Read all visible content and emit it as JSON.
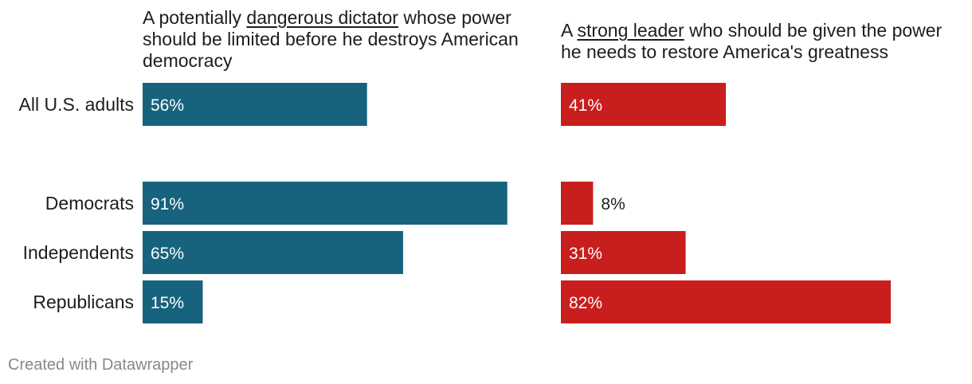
{
  "chart_data": {
    "type": "bar",
    "orientation": "horizontal",
    "categories": [
      "All U.S. adults",
      "Democrats",
      "Independents",
      "Republicans"
    ],
    "series": [
      {
        "name": "A potentially dangerous dictator whose power should be limited before he destroys American democracy",
        "title_parts": {
          "before": "A potentially ",
          "underlined": "dangerous dictator",
          "after": " whose power should be limited before he destroys American democracy"
        },
        "color": "#17637d",
        "values": [
          56,
          91,
          65,
          15
        ],
        "labels": [
          "56%",
          "91%",
          "65%",
          "15%"
        ]
      },
      {
        "name": "A strong leader who should be given the power he needs to restore America's greatness",
        "title_parts": {
          "before": "A ",
          "underlined": "strong leader",
          "after": " who should be given the power he needs to restore America's greatness"
        },
        "color": "#c91e1e",
        "values": [
          41,
          8,
          31,
          82
        ],
        "labels": [
          "41%",
          "8%",
          "31%",
          "82%"
        ]
      }
    ],
    "xlim": [
      0,
      100
    ],
    "unit": "%"
  },
  "footer": {
    "credit": "Created with Datawrapper"
  }
}
